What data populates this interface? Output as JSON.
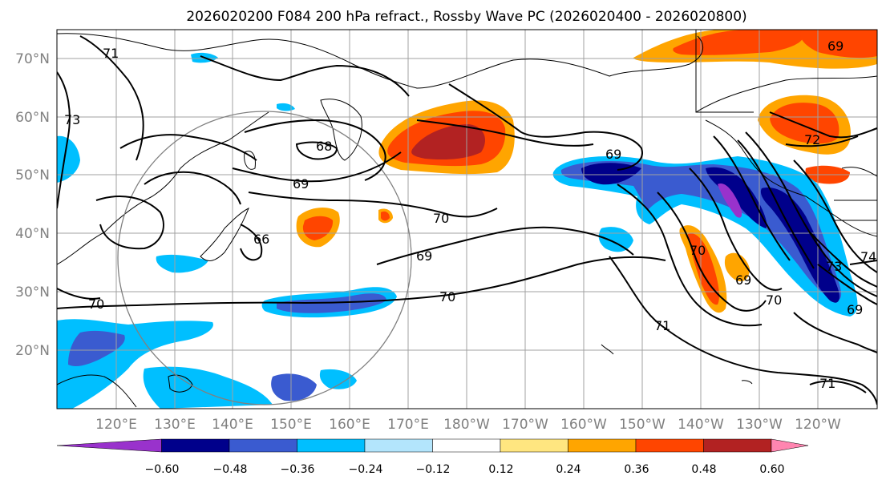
{
  "title": "2026020200 F084 200 hPa refract., Rossby Wave PC (2026020400 - 2026020800)",
  "lat_labels": [
    "70°N",
    "60°N",
    "50°N",
    "40°N",
    "30°N",
    "20°N"
  ],
  "lon_labels": [
    "120°E",
    "130°E",
    "140°E",
    "150°E",
    "160°E",
    "170°E",
    "180°W",
    "170°W",
    "160°W",
    "150°W",
    "140°W",
    "130°W",
    "120°W"
  ],
  "colorbar": {
    "ticks": [
      "−0.60",
      "−0.48",
      "−0.36",
      "−0.24",
      "−0.12",
      "0.12",
      "0.24",
      "0.36",
      "0.48",
      "0.60"
    ],
    "colors": [
      "#9932cc",
      "#00008b",
      "#3a5bd0",
      "#00bfff",
      "#b3e5fc",
      "#ffffff",
      "#ffe680",
      "#ffa500",
      "#ff4500",
      "#b22222",
      "#ff85b0"
    ]
  },
  "contour_labels": [
    "71",
    "73",
    "68",
    "69",
    "66",
    "70",
    "69",
    "70",
    "69",
    "72",
    "69",
    "70",
    "70",
    "71",
    "71",
    "73",
    "74",
    "69",
    "69",
    "70"
  ]
}
